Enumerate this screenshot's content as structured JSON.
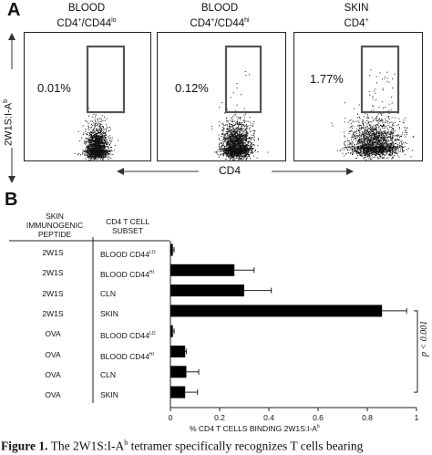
{
  "panel_a": {
    "letter": "A",
    "y_axis_label": "2W1S:I-A",
    "y_axis_label_sup": "b",
    "x_axis_label": "CD4",
    "plots": [
      {
        "title_line1": "BLOOD",
        "title_line2_main": "CD4",
        "title_line2_sup": "+",
        "title_line2_rest": "/CD44",
        "title_line2_sup2": "lo",
        "percent": "0.01%"
      },
      {
        "title_line1": "BLOOD",
        "title_line2_main": "CD4",
        "title_line2_sup": "+",
        "title_line2_rest": "/CD44",
        "title_line2_sup2": "hi",
        "percent": "0.12%"
      },
      {
        "title_line1": "SKIN",
        "title_line2_main": "CD4",
        "title_line2_sup": "+",
        "title_line2_rest": "",
        "title_line2_sup2": "",
        "percent": "1.77%"
      }
    ]
  },
  "panel_b": {
    "letter": "B",
    "col1_header_l1": "SKIN",
    "col1_header_l2": "IMMUNOGENIC",
    "col1_header_l3": "PEPTIDE",
    "col2_header_l1": "CD4 T CELL",
    "col2_header_l2": "SUBSET",
    "significance": "p < 0.001"
  },
  "chart_data": {
    "type": "bar",
    "orientation": "horizontal",
    "rows": [
      {
        "peptide": "2W1S",
        "subset": "BLOOD CD44",
        "subset_sup": "LO"
      },
      {
        "peptide": "2W1S",
        "subset": "BLOOD CD44",
        "subset_sup": "HI"
      },
      {
        "peptide": "2W1S",
        "subset": "CLN",
        "subset_sup": ""
      },
      {
        "peptide": "2W1S",
        "subset": "SKIN",
        "subset_sup": ""
      },
      {
        "peptide": "OVA",
        "subset": "BLOOD CD44",
        "subset_sup": "LO"
      },
      {
        "peptide": "OVA",
        "subset": "BLOOD CD44",
        "subset_sup": "HI"
      },
      {
        "peptide": "OVA",
        "subset": "CLN",
        "subset_sup": ""
      },
      {
        "peptide": "OVA",
        "subset": "SKIN",
        "subset_sup": ""
      }
    ],
    "values": [
      0.01,
      0.26,
      0.3,
      0.86,
      0.01,
      0.06,
      0.065,
      0.06
    ],
    "errors": [
      0.005,
      0.08,
      0.11,
      0.1,
      0.005,
      0.005,
      0.05,
      0.05
    ],
    "xlim": [
      0,
      1
    ],
    "xticks": [
      "0",
      "0.2",
      "0.4",
      "0.6",
      "0.8",
      "1"
    ],
    "xlabel": "% CD4 T CELLS BINDING 2W1S:I-A",
    "xlabel_sup": "b",
    "grid": false
  },
  "caption": {
    "label": "Figure 1.",
    "text_before_sup": "The 2W1S:I-A",
    "sup": "b",
    "text_after_sup": " tetramer specifically recognizes T cells bearing"
  }
}
